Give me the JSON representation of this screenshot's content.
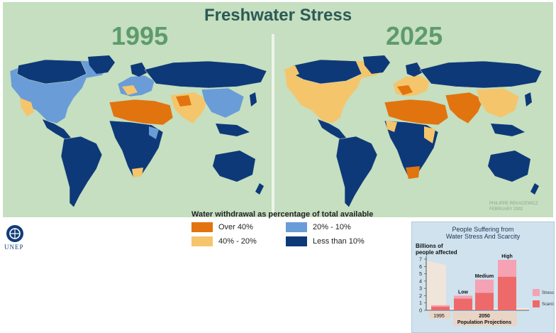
{
  "title": "Freshwater Stress",
  "maps": [
    {
      "year": "1995"
    },
    {
      "year": "2025"
    }
  ],
  "credit": {
    "line1": "PHILIPPE REKACEWICZ",
    "line2": "FEBRUARY 2002"
  },
  "legend": {
    "title": "Water withdrawal as percentage of total available",
    "items": [
      {
        "label": "Over 40%",
        "color": "#e2740f"
      },
      {
        "label": "40% - 20%",
        "color": "#f5c56b"
      },
      {
        "label": "20% - 10%",
        "color": "#6a9cd8"
      },
      {
        "label": "Less than 10%",
        "color": "#0e3978"
      }
    ]
  },
  "logo": {
    "text": "UNEP"
  },
  "chart_data": {
    "type": "bar",
    "title": "People Suffering from Water Stress And Scarcity",
    "title_line1": "People Suffering from",
    "title_line2": "Water Stress And Scarcity",
    "ylabel_line1": "Billions of",
    "ylabel_line2": "people affected",
    "ylim": [
      0,
      7
    ],
    "yticks": [
      "0",
      "1",
      "2",
      "3",
      "4",
      "5",
      "6",
      "7"
    ],
    "categories": [
      "1995",
      "Low",
      "Medium",
      "High"
    ],
    "series": [
      {
        "name": "Scarcity",
        "color": "#ee6a6a",
        "values": [
          0.5,
          1.6,
          2.4,
          4.6
        ]
      },
      {
        "name": "Stress",
        "color": "#f4a2b4",
        "values": [
          0.2,
          0.4,
          1.8,
          2.3
        ]
      }
    ],
    "x_group_label_1995": "1995",
    "x_group_label_2050": "2050",
    "x_group_sublabel": "Population Projections",
    "legend": [
      "Stress",
      "Scarcity"
    ]
  }
}
